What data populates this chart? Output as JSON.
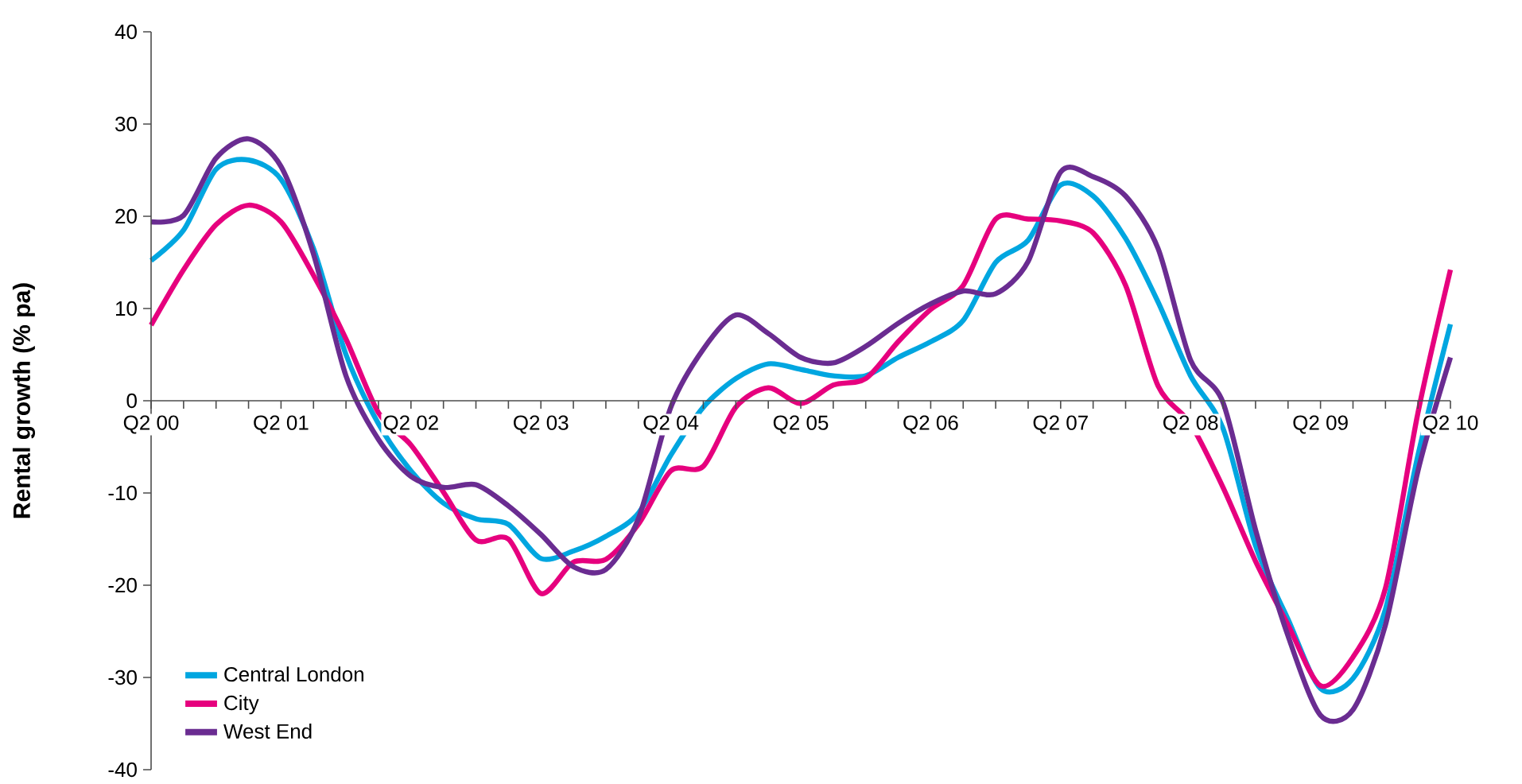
{
  "chart_data": {
    "type": "line",
    "ylabel": "Rental growth (% pa)",
    "categories": [
      "Q2 00",
      null,
      null,
      null,
      "Q2 01",
      null,
      null,
      null,
      "Q2 02",
      null,
      null,
      null,
      "Q2 03",
      null,
      null,
      null,
      "Q2 04",
      null,
      null,
      null,
      "Q2 05",
      null,
      null,
      null,
      "Q2 06",
      null,
      null,
      null,
      "Q2 07",
      null,
      null,
      null,
      "Q2 08",
      null,
      null,
      null,
      "Q2 09",
      null,
      null,
      null,
      "Q2 10"
    ],
    "ylim": [
      -40,
      40
    ],
    "yticks": [
      -40,
      -30,
      -20,
      -10,
      0,
      10,
      20,
      30,
      40
    ],
    "legend": "bottom left",
    "grid": false,
    "marker": "none",
    "line_style": "solid",
    "series": [
      {
        "name": "Central London",
        "color": "#00a6e0",
        "values": [
          15.2,
          18.5,
          25.1,
          26.1,
          24,
          16.5,
          5,
          -2.5,
          -7.6,
          -11.1,
          -12.8,
          -13.4,
          -17.1,
          -16.3,
          -14.7,
          -12.2,
          -5.9,
          -0.7,
          2.4,
          4,
          3.4,
          2.7,
          2.7,
          4.7,
          6.4,
          8.7,
          15,
          17.4,
          23.4,
          22.2,
          17.6,
          10.7,
          2.7,
          -3,
          -15.7,
          -23.7,
          -31.2,
          -30.1,
          -22.6,
          -5.9,
          8.3
        ]
      },
      {
        "name": "City",
        "color": "#e6007e",
        "values": [
          8.2,
          14.2,
          19.1,
          21.2,
          19.4,
          13.6,
          6.7,
          -1.3,
          -4.8,
          -9.9,
          -15.1,
          -15,
          -20.9,
          -17.5,
          -17.2,
          -13.4,
          -7.6,
          -7.1,
          -0.7,
          1.4,
          -0.3,
          1.7,
          2.4,
          6.4,
          9.9,
          12.5,
          19.7,
          19.7,
          19.5,
          18.2,
          12.5,
          1.6,
          -2.5,
          -9.4,
          -17.4,
          -24.3,
          -30.9,
          -27.8,
          -20.3,
          -1.3,
          14.2
        ]
      },
      {
        "name": "West End",
        "color": "#6a2c91",
        "values": [
          19.4,
          20.1,
          26.3,
          28.4,
          25.4,
          15.9,
          2.7,
          -4.2,
          -8.2,
          -9.4,
          -9.1,
          -11.4,
          -14.5,
          -18,
          -18.3,
          -12.8,
          -0.7,
          5.6,
          9.3,
          7.3,
          4.7,
          4.1,
          5.9,
          8.4,
          10.5,
          11.9,
          11.6,
          15.1,
          24.8,
          24.3,
          22.2,
          16.5,
          4.4,
          -0.2,
          -14,
          -25.5,
          -34.1,
          -33.5,
          -24.3,
          -7.6,
          4.7
        ]
      }
    ]
  }
}
